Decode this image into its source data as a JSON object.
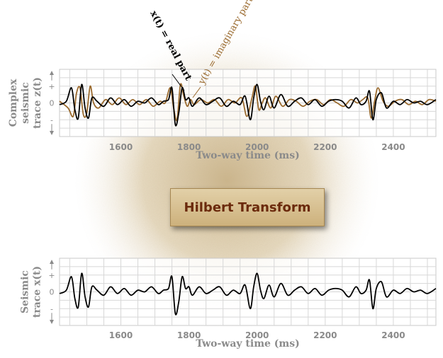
{
  "colors": {
    "real": "#000000",
    "imaginary": "#9a6a2e",
    "grid": "#d7d7d7",
    "axis_text": "#8a8a8a",
    "hilbert_text": "#6b2a0c",
    "hilbert_box": "#d9c394"
  },
  "hilbert_label": "Hilbert Transform",
  "chart_data": [
    {
      "type": "line",
      "title": "",
      "ylabel_lines": [
        "Complex",
        "seismic",
        "trace z(t)"
      ],
      "xlabel": "Two-way time (ms)",
      "xlim": [
        1420,
        2525
      ],
      "ylim": [
        -2,
        2
      ],
      "x_ticks": [
        1600,
        1800,
        2000,
        2200,
        2400
      ],
      "x_tick_labels": [
        "1600",
        "1800",
        "2000",
        "2200",
        "2400"
      ],
      "y_ticks": [
        "+",
        "0",
        "-"
      ],
      "grid": true,
      "annotations": [
        {
          "text": "x(t) = real part",
          "series": "real"
        },
        {
          "text": "y(t) = imaginary part",
          "series": "imaginary"
        }
      ],
      "series": [
        {
          "key": "real",
          "x": [
            1420,
            1440,
            1455,
            1465,
            1475,
            1485,
            1495,
            1505,
            1515,
            1530,
            1550,
            1570,
            1590,
            1610,
            1630,
            1650,
            1670,
            1690,
            1710,
            1725,
            1740,
            1750,
            1760,
            1770,
            1780,
            1790,
            1800,
            1810,
            1830,
            1850,
            1870,
            1890,
            1910,
            1930,
            1950,
            1965,
            1980,
            1990,
            2000,
            2010,
            2020,
            2035,
            2050,
            2070,
            2090,
            2110,
            2130,
            2150,
            2170,
            2190,
            2210,
            2230,
            2250,
            2270,
            2290,
            2305,
            2320,
            2330,
            2340,
            2350,
            2365,
            2380,
            2400,
            2420,
            2440,
            2460,
            2480,
            2500,
            2525
          ],
          "y": [
            -0.1,
            0.1,
            0.9,
            -0.4,
            -0.9,
            1.1,
            -0.3,
            -0.9,
            0.3,
            0.1,
            -0.2,
            0.3,
            -0.1,
            0.2,
            -0.2,
            0.1,
            0.0,
            0.3,
            -0.1,
            0.1,
            0.2,
            0.9,
            -1.3,
            -0.6,
            0.9,
            0.2,
            0.3,
            -0.2,
            0.3,
            -0.1,
            0.1,
            0.3,
            -0.2,
            0.1,
            -0.1,
            0.4,
            -1.0,
            0.3,
            1.1,
            0.1,
            -0.4,
            0.4,
            -0.3,
            0.5,
            -0.2,
            0.1,
            0.3,
            -0.1,
            0.2,
            -0.2,
            0.1,
            0.2,
            0.1,
            -0.3,
            0.3,
            -0.1,
            0.1,
            0.7,
            -1.0,
            0.2,
            0.6,
            -0.3,
            0.1,
            -0.1,
            0.2,
            0.0,
            0.1,
            -0.1,
            0.2
          ]
        },
        {
          "key": "imaginary",
          "x": [
            1420,
            1445,
            1460,
            1470,
            1480,
            1490,
            1500,
            1510,
            1520,
            1535,
            1555,
            1575,
            1595,
            1615,
            1635,
            1655,
            1675,
            1695,
            1715,
            1730,
            1745,
            1755,
            1765,
            1775,
            1785,
            1795,
            1805,
            1815,
            1835,
            1855,
            1875,
            1895,
            1915,
            1935,
            1955,
            1970,
            1985,
            1995,
            2005,
            2015,
            2025,
            2040,
            2055,
            2075,
            2095,
            2115,
            2135,
            2155,
            2175,
            2195,
            2215,
            2235,
            2255,
            2275,
            2295,
            2310,
            2325,
            2335,
            2345,
            2355,
            2370,
            2385,
            2405,
            2425,
            2445,
            2465,
            2485,
            2505,
            2525
          ],
          "y": [
            0.1,
            -0.3,
            -0.8,
            0.6,
            0.9,
            -0.7,
            -0.6,
            1.0,
            0.0,
            -0.3,
            0.2,
            -0.1,
            0.3,
            -0.1,
            0.2,
            -0.1,
            0.2,
            -0.2,
            0.1,
            0.0,
            0.9,
            -0.3,
            -1.0,
            1.1,
            0.4,
            -0.2,
            0.2,
            -0.1,
            0.2,
            0.0,
            0.2,
            -0.2,
            0.2,
            0.0,
            0.3,
            -0.8,
            0.3,
            1.0,
            -0.4,
            0.0,
            0.3,
            -0.3,
            0.4,
            -0.2,
            0.2,
            0.1,
            -0.2,
            0.1,
            0.2,
            -0.1,
            0.2,
            0.0,
            -0.2,
            0.2,
            0.0,
            0.2,
            0.3,
            -0.9,
            0.1,
            0.9,
            0.1,
            -0.2,
            0.1,
            0.2,
            -0.1,
            0.1,
            -0.1,
            0.2,
            0.1
          ]
        }
      ]
    },
    {
      "type": "line",
      "title": "",
      "ylabel_lines": [
        "Seismic",
        "trace x(t)"
      ],
      "xlabel": "Two-way time (ms)",
      "xlim": [
        1420,
        2525
      ],
      "ylim": [
        -2,
        2
      ],
      "x_ticks": [
        1600,
        1800,
        2000,
        2200,
        2400
      ],
      "x_tick_labels": [
        "1600",
        "1800",
        "2000",
        "2200",
        "2400"
      ],
      "y_ticks": [
        "+",
        "0",
        "-"
      ],
      "grid": true,
      "annotations": [],
      "series": [
        {
          "key": "real",
          "x": [
            1420,
            1440,
            1455,
            1465,
            1475,
            1485,
            1495,
            1505,
            1515,
            1530,
            1550,
            1570,
            1590,
            1610,
            1630,
            1650,
            1670,
            1690,
            1710,
            1725,
            1740,
            1750,
            1760,
            1770,
            1780,
            1790,
            1800,
            1810,
            1830,
            1850,
            1870,
            1890,
            1910,
            1930,
            1950,
            1965,
            1980,
            1990,
            2000,
            2010,
            2020,
            2035,
            2050,
            2070,
            2090,
            2110,
            2130,
            2150,
            2170,
            2190,
            2210,
            2230,
            2250,
            2270,
            2290,
            2305,
            2320,
            2330,
            2340,
            2350,
            2365,
            2380,
            2400,
            2420,
            2440,
            2460,
            2480,
            2500,
            2525
          ],
          "y": [
            -0.1,
            0.1,
            0.9,
            -0.4,
            -0.9,
            1.1,
            -0.3,
            -0.9,
            0.3,
            0.1,
            -0.2,
            0.3,
            -0.1,
            0.2,
            -0.2,
            0.1,
            0.0,
            0.3,
            -0.1,
            0.1,
            0.2,
            0.9,
            -1.3,
            -0.6,
            0.9,
            0.2,
            0.3,
            -0.2,
            0.3,
            -0.1,
            0.1,
            0.3,
            -0.2,
            0.1,
            -0.1,
            0.4,
            -1.0,
            0.3,
            1.1,
            0.1,
            -0.4,
            0.4,
            -0.3,
            0.5,
            -0.2,
            0.1,
            0.3,
            -0.1,
            0.2,
            -0.2,
            0.1,
            0.2,
            0.1,
            -0.3,
            0.3,
            -0.1,
            0.1,
            0.7,
            -1.0,
            0.2,
            0.6,
            -0.3,
            0.1,
            -0.1,
            0.2,
            0.0,
            0.1,
            -0.1,
            0.2
          ]
        }
      ]
    }
  ]
}
